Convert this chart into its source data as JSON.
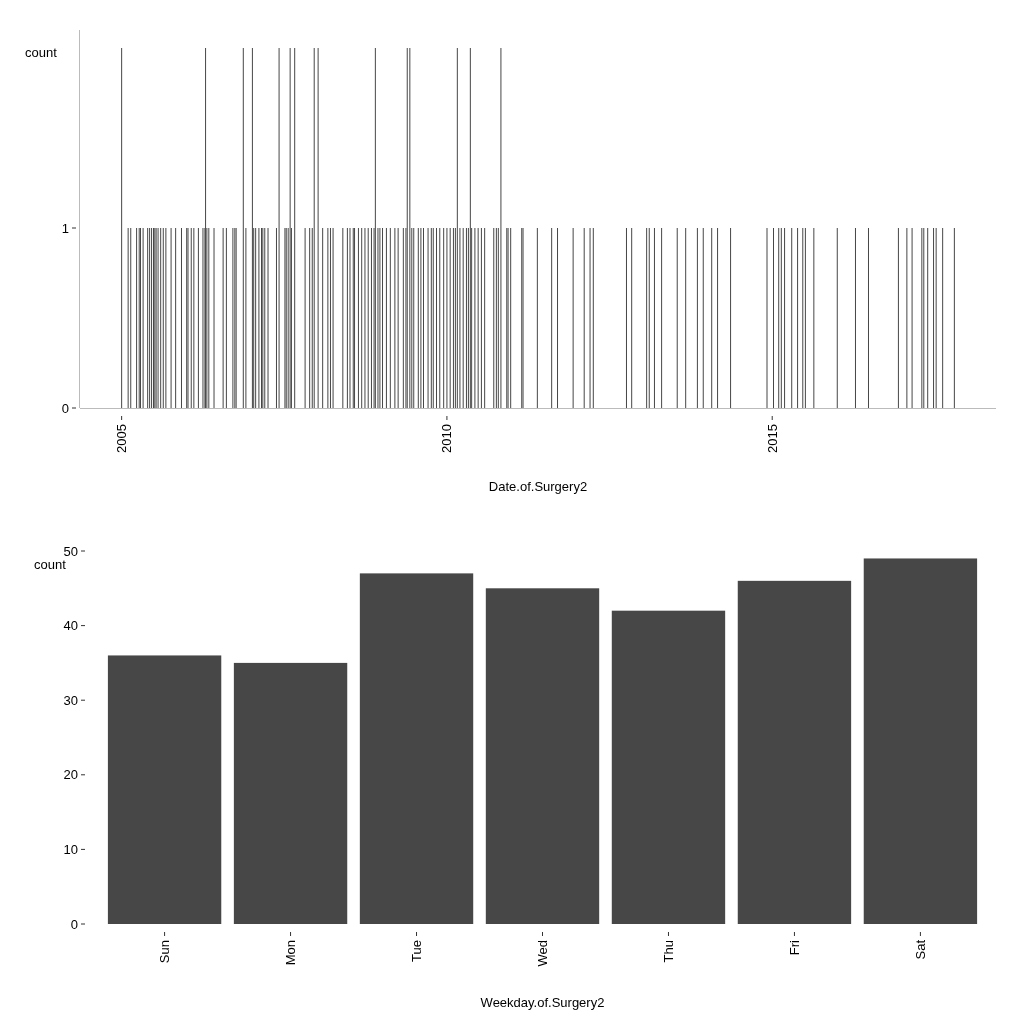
{
  "chart_data": [
    {
      "type": "bar",
      "xlabel": "Date.of.Surgery2",
      "ylabel": "count",
      "color": "#474747",
      "x": [
        2005.0,
        2005.1,
        2005.14,
        2005.23,
        2005.27,
        2005.29,
        2005.33,
        2005.4,
        2005.43,
        2005.46,
        2005.49,
        2005.51,
        2005.53,
        2005.56,
        2005.6,
        2005.64,
        2005.68,
        2005.76,
        2005.83,
        2005.92,
        2006.0,
        2006.02,
        2006.07,
        2006.11,
        2006.18,
        2006.25,
        2006.28,
        2006.29,
        2006.31,
        2006.34,
        2006.42,
        2006.56,
        2006.61,
        2006.71,
        2006.74,
        2006.76,
        2006.87,
        2006.91,
        2007.01,
        2007.03,
        2007.06,
        2007.11,
        2007.15,
        2007.17,
        2007.2,
        2007.25,
        2007.38,
        2007.42,
        2007.51,
        2007.53,
        2007.56,
        2007.59,
        2007.61,
        2007.66,
        2007.82,
        2007.89,
        2007.93,
        2007.96,
        2008.02,
        2008.09,
        2008.17,
        2008.21,
        2008.25,
        2008.4,
        2008.47,
        2008.51,
        2008.56,
        2008.58,
        2008.64,
        2008.69,
        2008.74,
        2008.79,
        2008.84,
        2008.88,
        2008.9,
        2008.94,
        2008.97,
        2009.01,
        2009.07,
        2009.13,
        2009.2,
        2009.25,
        2009.33,
        2009.37,
        2009.39,
        2009.43,
        2009.46,
        2009.49,
        2009.56,
        2009.6,
        2009.64,
        2009.71,
        2009.76,
        2009.79,
        2009.84,
        2009.89,
        2009.95,
        2010.0,
        2010.05,
        2010.1,
        2010.13,
        2010.16,
        2010.2,
        2010.25,
        2010.3,
        2010.33,
        2010.36,
        2010.38,
        2010.43,
        2010.48,
        2010.53,
        2010.58,
        2010.72,
        2010.76,
        2010.79,
        2010.83,
        2010.92,
        2010.94,
        2010.98,
        2011.15,
        2011.17,
        2011.39,
        2011.61,
        2011.7,
        2011.94,
        2012.11,
        2012.2,
        2012.25,
        2012.76,
        2012.84,
        2013.07,
        2013.11,
        2013.19,
        2013.3,
        2013.54,
        2013.67,
        2013.85,
        2013.94,
        2014.07,
        2014.16,
        2014.36,
        2014.92,
        2015.02,
        2015.1,
        2015.14,
        2015.19,
        2015.3,
        2015.39,
        2015.47,
        2015.51,
        2015.64,
        2016.0,
        2016.28,
        2016.48,
        2016.94,
        2017.07,
        2017.15,
        2017.3,
        2017.33,
        2017.39,
        2017.48,
        2017.52,
        2017.62,
        2017.8
      ],
      "values": [
        2,
        1,
        1,
        1,
        1,
        1,
        1,
        1,
        1,
        1,
        1,
        1,
        1,
        1,
        1,
        1,
        1,
        1,
        1,
        1,
        1,
        1,
        1,
        1,
        1,
        1,
        1,
        2,
        1,
        1,
        1,
        1,
        1,
        1,
        1,
        1,
        2,
        1,
        2,
        1,
        1,
        1,
        1,
        1,
        1,
        1,
        1,
        2,
        1,
        1,
        1,
        2,
        1,
        2,
        1,
        1,
        1,
        2,
        2,
        1,
        1,
        1,
        1,
        1,
        1,
        1,
        1,
        1,
        1,
        1,
        1,
        1,
        1,
        1,
        2,
        1,
        1,
        1,
        1,
        1,
        1,
        1,
        1,
        1,
        2,
        2,
        1,
        1,
        1,
        1,
        1,
        1,
        1,
        1,
        1,
        1,
        1,
        1,
        1,
        1,
        1,
        2,
        1,
        1,
        1,
        1,
        2,
        1,
        1,
        1,
        1,
        1,
        1,
        1,
        1,
        2,
        1,
        1,
        1,
        1,
        1,
        1,
        1,
        1,
        1,
        1,
        1,
        1,
        1,
        1,
        1,
        1,
        1,
        1,
        1,
        1,
        1,
        1,
        1,
        1,
        1,
        1,
        1,
        1,
        1,
        1,
        1,
        1,
        1,
        1,
        1,
        1,
        1,
        1,
        1,
        1,
        1,
        1,
        1,
        1,
        1,
        1,
        1,
        1
      ],
      "xlim": [
        2004.36,
        2018.44
      ],
      "xticks": [
        2005,
        2010,
        2015
      ],
      "ylim": [
        0,
        2.1
      ],
      "yticks": [
        0,
        1
      ]
    },
    {
      "type": "bar",
      "xlabel": "Weekday.of.Surgery2",
      "ylabel": "count",
      "color": "#474747",
      "categories": [
        "Sun",
        "Mon",
        "Tue",
        "Wed",
        "Thu",
        "Fri",
        "Sat"
      ],
      "values": [
        36,
        35,
        47,
        45,
        42,
        46,
        49
      ],
      "ylim": [
        0,
        50
      ],
      "yticks": [
        0,
        10,
        20,
        30,
        40,
        50
      ]
    }
  ]
}
